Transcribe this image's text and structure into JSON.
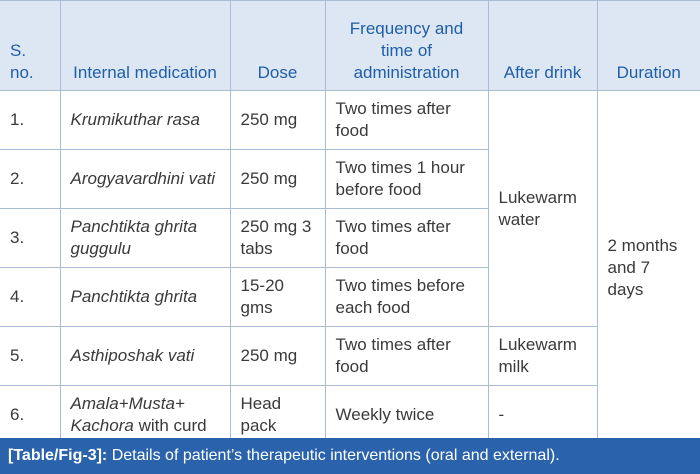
{
  "header": {
    "sno": "S. no.",
    "medication": "Internal medication",
    "dose": "Dose",
    "frequency": "Frequency and time of administration",
    "after_drink": "After drink",
    "duration": "Duration"
  },
  "rows": [
    {
      "sno": "1.",
      "medication": "Krumikuthar rasa",
      "dose": "250 mg",
      "frequency": "Two times after food"
    },
    {
      "sno": "2.",
      "medication": "Arogyavardhini vati",
      "dose": "250 mg",
      "frequency": "Two times 1 hour before food"
    },
    {
      "sno": "3.",
      "medication": "Panchtikta ghrita guggulu",
      "dose": "250 mg 3 tabs",
      "frequency": "Two times after food"
    },
    {
      "sno": "4.",
      "medication": "Panchtikta ghrita",
      "dose": "15-20 gms",
      "frequency": "Two times before each food"
    },
    {
      "sno": "5.",
      "medication": "Asthiposhak vati",
      "dose": "250 mg",
      "frequency": "Two times after food",
      "after_drink": "Lukewarm milk"
    },
    {
      "sno": "6.",
      "medication": "Amala+Musta+ Kachora",
      "medication_note": "with curd",
      "dose": "Head pack",
      "frequency": "Weekly twice",
      "after_drink": "-"
    }
  ],
  "shared": {
    "after_drink_rows_1_4": "Lukewarm water",
    "duration_all_rows": "2 months and 7 days"
  },
  "caption": {
    "label": "[Table/Fig-3]:",
    "text": "Details of patient’s therapeutic interventions (oral and external)."
  }
}
